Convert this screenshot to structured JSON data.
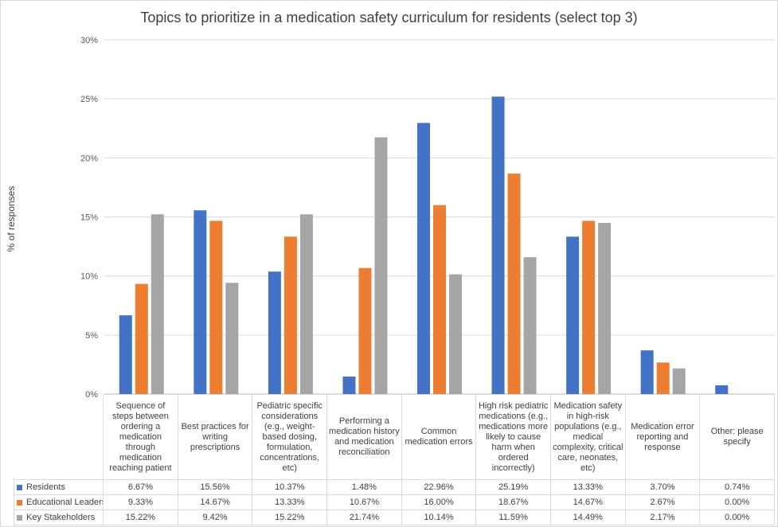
{
  "chart_data": {
    "type": "bar",
    "title": "Topics to prioritize in a medication safety curriculum for residents (select top 3)",
    "ylabel": "% of responses",
    "ylim": [
      0,
      30
    ],
    "yticks": [
      "0%",
      "5%",
      "10%",
      "15%",
      "20%",
      "25%",
      "30%"
    ],
    "grid": true,
    "legend": "data-table",
    "categories": [
      "Sequence of steps between ordering a medication through medication reaching patient",
      "Best practices for writing prescriptions",
      "Pediatric specific considerations (e.g., weight-based dosing, formulation, concentrations, etc)",
      "Performing a medication history and medication reconciliation",
      "Common medication errors",
      "High risk pediatric medications (e.g., medications more likely to cause harm when ordered incorrectly)",
      "Medication safety in high-risk populations (e.g., medical complexity, critical care, neonates, etc)",
      "Medication error reporting and response",
      "Other: please specify"
    ],
    "series": [
      {
        "name": "Residents",
        "color": "#4472C4",
        "values": [
          6.67,
          15.56,
          10.37,
          1.48,
          22.96,
          25.19,
          13.33,
          3.7,
          0.74
        ],
        "labels": [
          "6.67%",
          "15.56%",
          "10.37%",
          "1.48%",
          "22.96%",
          "25.19%",
          "13.33%",
          "3.70%",
          "0.74%"
        ]
      },
      {
        "name": "Educational Leaders",
        "color": "#ED7D31",
        "values": [
          9.33,
          14.67,
          13.33,
          10.67,
          16.0,
          18.67,
          14.67,
          2.67,
          0.0
        ],
        "labels": [
          "9.33%",
          "14.67%",
          "13.33%",
          "10.67%",
          "16.00%",
          "18.67%",
          "14.67%",
          "2.67%",
          "0.00%"
        ]
      },
      {
        "name": "Key Stakeholders",
        "color": "#A5A5A5",
        "values": [
          15.22,
          9.42,
          15.22,
          21.74,
          10.14,
          11.59,
          14.49,
          2.17,
          0.0
        ],
        "labels": [
          "15.22%",
          "9.42%",
          "15.22%",
          "21.74%",
          "10.14%",
          "11.59%",
          "14.49%",
          "2.17%",
          "0.00%"
        ]
      }
    ]
  }
}
